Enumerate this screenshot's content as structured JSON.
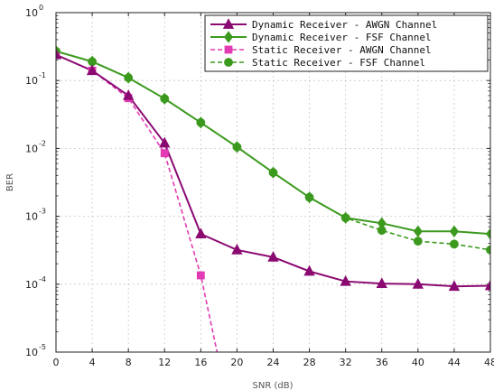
{
  "chart_data": {
    "type": "line",
    "title": "",
    "xlabel": "SNR (dB)",
    "ylabel": "BER",
    "xlim": [
      0,
      48
    ],
    "ylim": [
      1e-05,
      1
    ],
    "yscale": "log",
    "x_ticks": [
      0,
      4,
      8,
      12,
      16,
      20,
      24,
      28,
      32,
      36,
      40,
      44,
      48
    ],
    "y_ticks": [
      {
        "base": "10",
        "exp": "0",
        "value": 1
      },
      {
        "base": "10",
        "exp": "-1",
        "value": 0.1
      },
      {
        "base": "10",
        "exp": "-2",
        "value": 0.01
      },
      {
        "base": "10",
        "exp": "-3",
        "value": 0.001
      },
      {
        "base": "10",
        "exp": "-4",
        "value": 0.0001
      },
      {
        "base": "10",
        "exp": "-5",
        "value": 1e-05
      }
    ],
    "grid": true,
    "legend_position": "top-right",
    "series": [
      {
        "name": "Dynamic Receiver - AWGN Channel",
        "color": "#8b0a72",
        "dash": "solid",
        "marker": "triangle",
        "x": [
          0,
          4,
          8,
          12,
          16,
          20,
          24,
          28,
          32,
          36,
          40,
          44,
          48
        ],
        "y": [
          0.24,
          0.14,
          0.06,
          0.012,
          0.00055,
          0.00032,
          0.00025,
          0.000155,
          0.00011,
          0.000102,
          0.0001,
          9.3e-05,
          9.5e-05
        ]
      },
      {
        "name": "Dynamic Receiver - FSF Channel",
        "color": "#3b9a1e",
        "dash": "solid",
        "marker": "diamond",
        "x": [
          0,
          4,
          8,
          12,
          16,
          20,
          24,
          28,
          32,
          36,
          40,
          44,
          48
        ],
        "y": [
          0.27,
          0.19,
          0.11,
          0.054,
          0.024,
          0.0105,
          0.0044,
          0.0019,
          0.00095,
          0.00079,
          0.0006,
          0.0006,
          0.00055
        ]
      },
      {
        "name": "Static Receiver - AWGN Channel",
        "color": "#e23bb4",
        "dash": "dashed",
        "marker": "square",
        "x": [
          0,
          4,
          8,
          12,
          16,
          17.8
        ],
        "y": [
          0.24,
          0.14,
          0.055,
          0.0085,
          0.000135,
          1e-05
        ]
      },
      {
        "name": "Static Receiver - FSF Channel",
        "color": "#3b9a1e",
        "dash": "dashed",
        "marker": "circle",
        "x": [
          0,
          4,
          8,
          12,
          16,
          20,
          24,
          28,
          32,
          36,
          40,
          44,
          48
        ],
        "y": [
          0.27,
          0.19,
          0.11,
          0.054,
          0.024,
          0.0105,
          0.0044,
          0.0019,
          0.00095,
          0.00062,
          0.00043,
          0.00039,
          0.00032
        ]
      }
    ]
  }
}
